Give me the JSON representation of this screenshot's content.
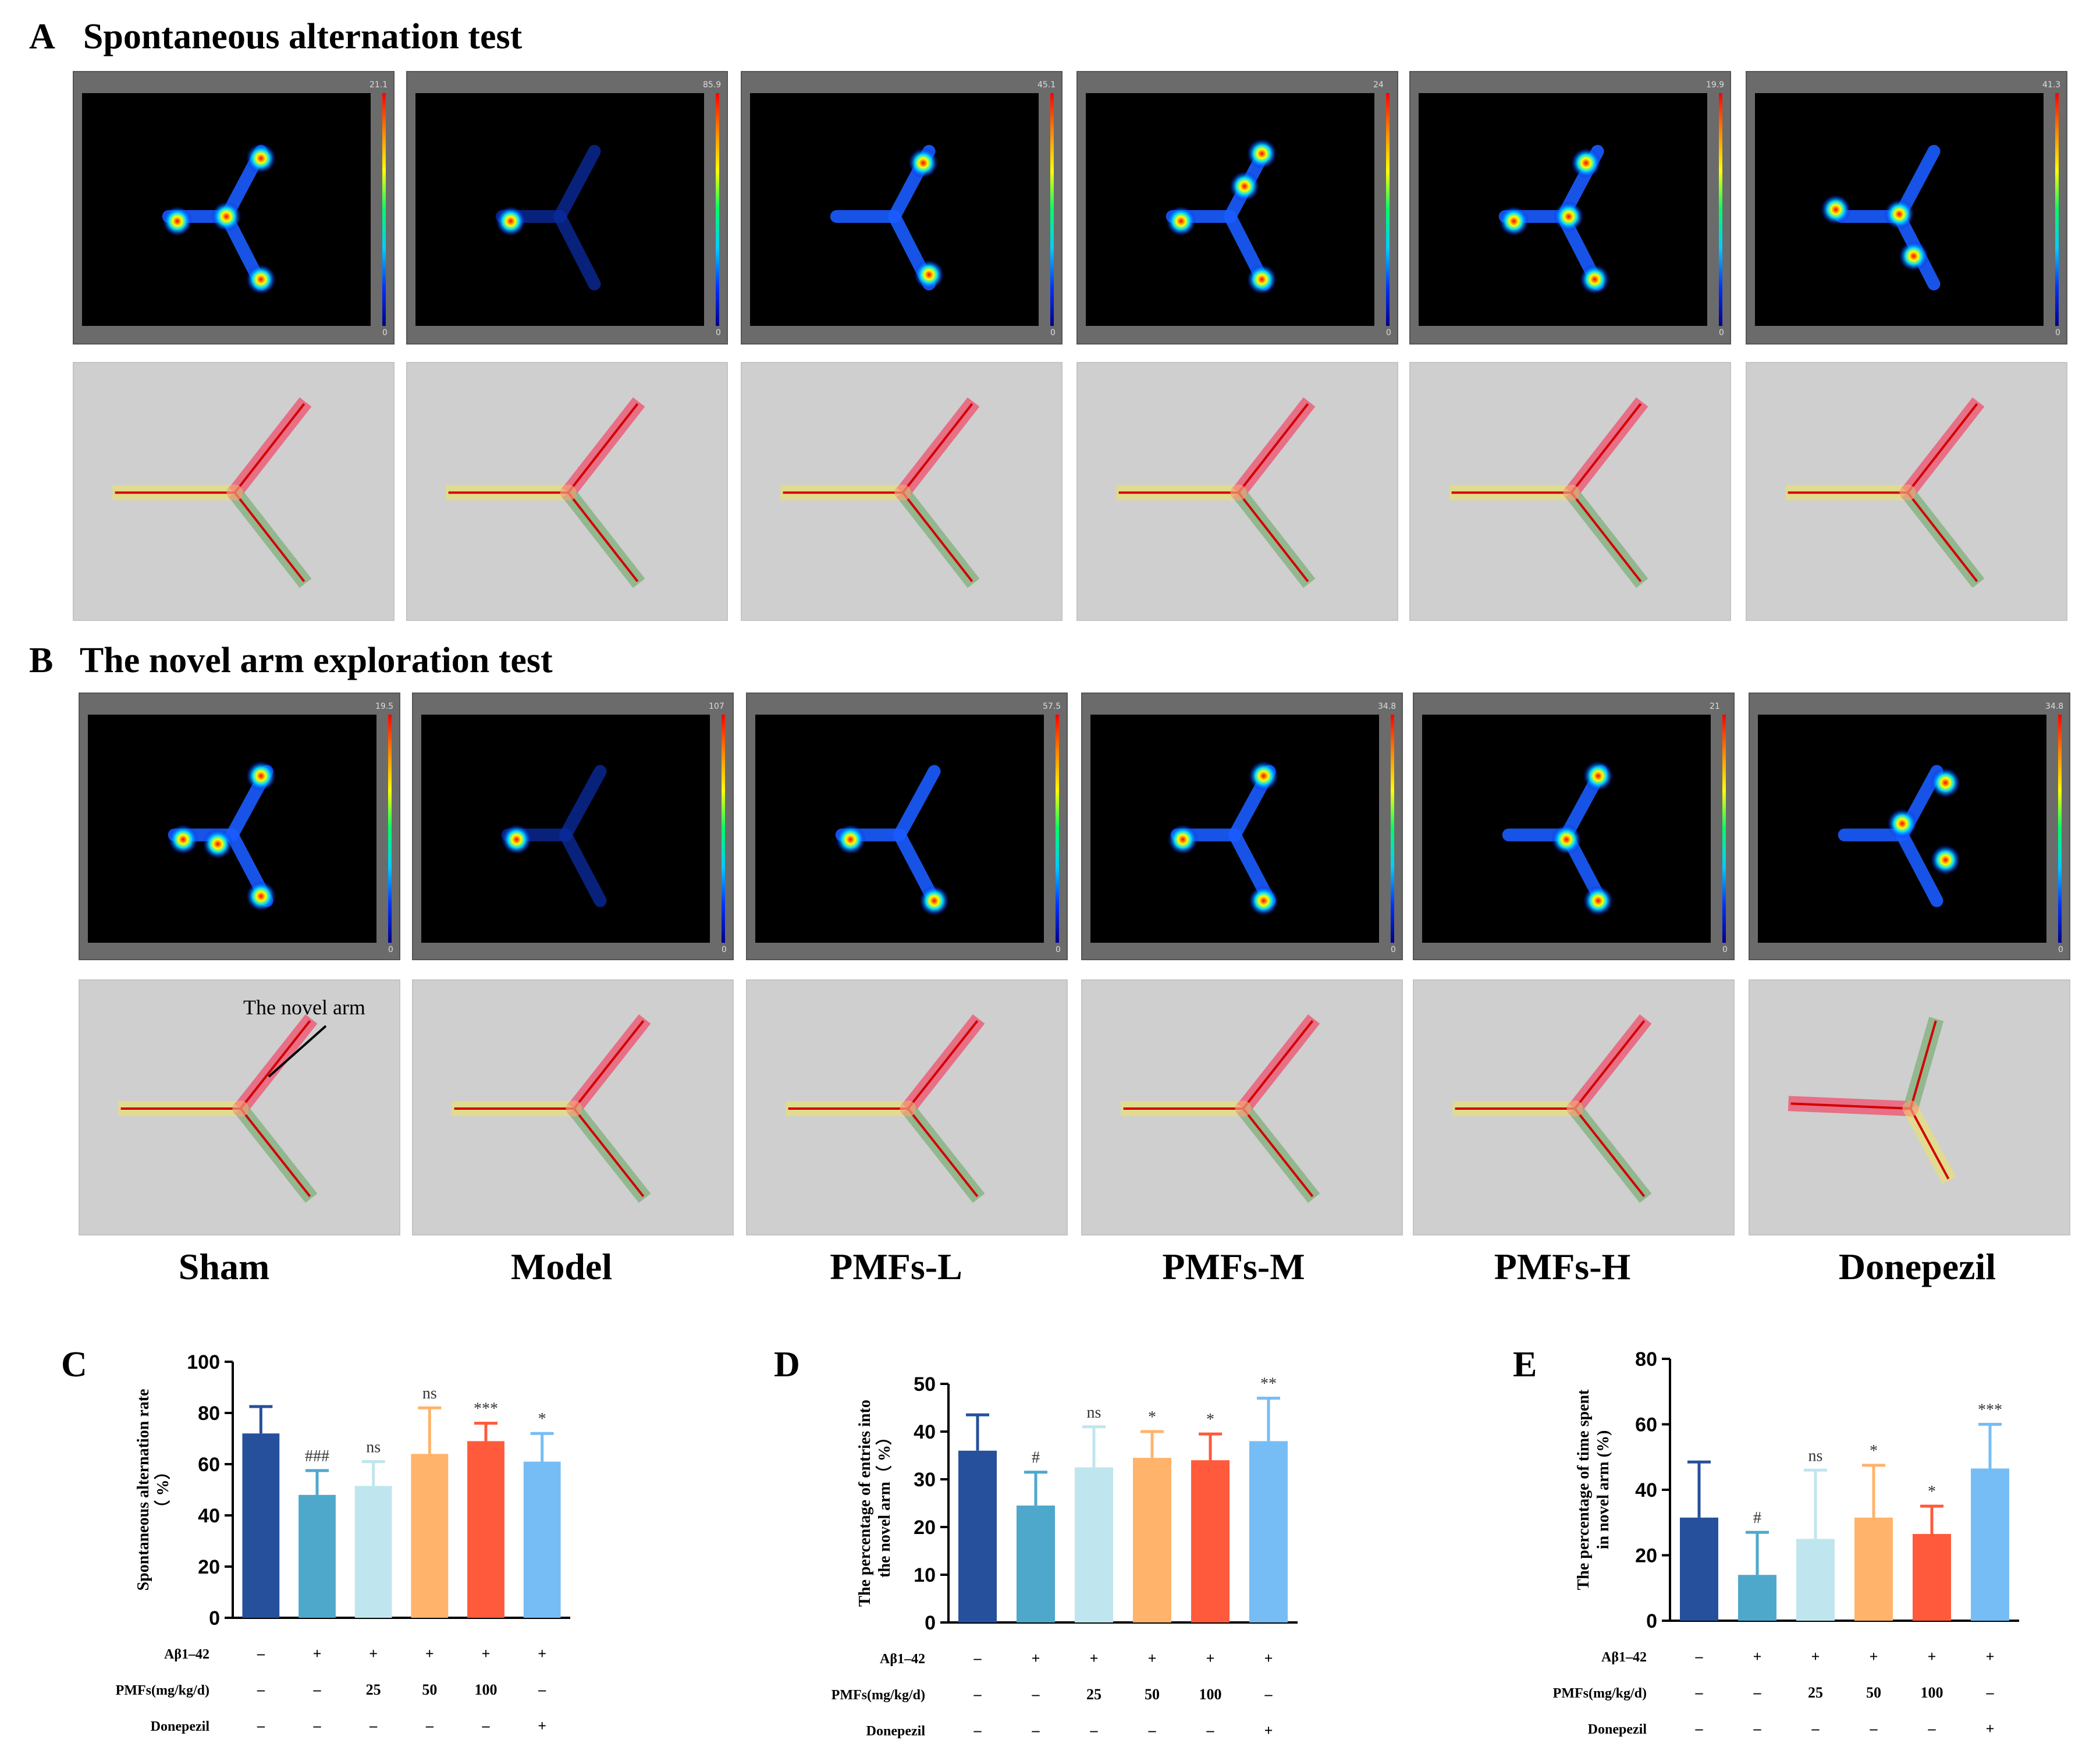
{
  "figure": {
    "sections": [
      {
        "letter": "A",
        "title": "Spontaneous alternation test"
      },
      {
        "letter": "B",
        "title": "The novel arm exploration test"
      }
    ],
    "groups": [
      "Sham",
      "Model",
      "PMFs-L",
      "PMFs-M",
      "PMFs-H",
      "Donepezil"
    ],
    "heatmap_scale_min": "0",
    "heatmap_max_A": [
      "21.1",
      "85.9",
      "45.1",
      "24",
      "19.9",
      "41.3"
    ],
    "heatmap_max_B": [
      "19.5",
      "107",
      "57.5",
      "34.8",
      "21",
      "34.8"
    ],
    "novel_arm_annotation": "The novel arm",
    "colors": {
      "sham": "#26509b",
      "model": "#4ea8cb",
      "pmfs_l": "#bfe6ee",
      "pmfs_m": "#ffb36b",
      "pmfs_h": "#ff5a3b",
      "donepezil": "#76bdf5",
      "arm_red": "#f0506e",
      "arm_yellow": "#e8e07a",
      "arm_green": "#7fb07a"
    }
  },
  "chart_data": [
    {
      "panel": "C",
      "type": "bar",
      "ylabel": "Spontaneous alternation rate (%)",
      "ylabel_lines": [
        "Spontaneous alternation rate",
        "（ %）"
      ],
      "ylim": [
        0,
        100
      ],
      "yticks": [
        0,
        20,
        40,
        60,
        80,
        100
      ],
      "categories": [
        "Sham",
        "Model",
        "PMFs-L",
        "PMFs-M",
        "PMFs-H",
        "Donepezil"
      ],
      "values": [
        72,
        48,
        51.5,
        64,
        69,
        61
      ],
      "errors": [
        10.5,
        9.5,
        9.5,
        18,
        7,
        11
      ],
      "significance": [
        "",
        "###",
        "ns",
        "ns",
        "***",
        "*"
      ],
      "treatment_rows": [
        {
          "label": "Aβ1–42",
          "values": [
            "–",
            "+",
            "+",
            "+",
            "+",
            "+"
          ]
        },
        {
          "label": "PMFs(mg/kg/d)",
          "values": [
            "–",
            "–",
            "25",
            "50",
            "100",
            "–"
          ]
        },
        {
          "label": "Donepezil",
          "values": [
            "–",
            "–",
            "–",
            "–",
            "–",
            "+"
          ]
        }
      ]
    },
    {
      "panel": "D",
      "type": "bar",
      "ylabel": "The percentage of entries into the novel arm (%)",
      "ylabel_lines": [
        "The percentage of entries into",
        "the novel arm（ %）"
      ],
      "ylim": [
        0,
        50
      ],
      "yticks": [
        0,
        10,
        20,
        30,
        40,
        50
      ],
      "categories": [
        "Sham",
        "Model",
        "PMFs-L",
        "PMFs-M",
        "PMFs-H",
        "Donepezil"
      ],
      "values": [
        36,
        24.5,
        32.5,
        34.5,
        34,
        38
      ],
      "errors": [
        7.5,
        7,
        8.5,
        5.5,
        5.5,
        9
      ],
      "significance": [
        "",
        "#",
        "ns",
        "*",
        "*",
        "**"
      ],
      "treatment_rows": [
        {
          "label": "Aβ1–42",
          "values": [
            "–",
            "+",
            "+",
            "+",
            "+",
            "+"
          ]
        },
        {
          "label": "PMFs(mg/kg/d)",
          "values": [
            "–",
            "–",
            "25",
            "50",
            "100",
            "–"
          ]
        },
        {
          "label": "Donepezil",
          "values": [
            "–",
            "–",
            "–",
            "–",
            "–",
            "+"
          ]
        }
      ]
    },
    {
      "panel": "E",
      "type": "bar",
      "ylabel": "The percentage of time spent in novel arm (%)",
      "ylabel_lines": [
        "The percentage of time spent",
        "in novel arm (%)"
      ],
      "ylim": [
        0,
        80
      ],
      "yticks": [
        0,
        20,
        40,
        60,
        80
      ],
      "categories": [
        "Sham",
        "Model",
        "PMFs-L",
        "PMFs-M",
        "PMFs-H",
        "Donepezil"
      ],
      "values": [
        31.5,
        14,
        25,
        31.5,
        26.5,
        46.5
      ],
      "errors": [
        17,
        13,
        21,
        16,
        8.5,
        13.5
      ],
      "significance": [
        "",
        "#",
        "ns",
        "*",
        "*",
        "***"
      ],
      "treatment_rows": [
        {
          "label": "Aβ1–42",
          "values": [
            "–",
            "+",
            "+",
            "+",
            "+",
            "+"
          ]
        },
        {
          "label": "PMFs(mg/kg/d)",
          "values": [
            "–",
            "–",
            "25",
            "50",
            "100",
            "–"
          ]
        },
        {
          "label": "Donepezil",
          "values": [
            "–",
            "–",
            "–",
            "–",
            "–",
            "+"
          ]
        }
      ]
    }
  ]
}
